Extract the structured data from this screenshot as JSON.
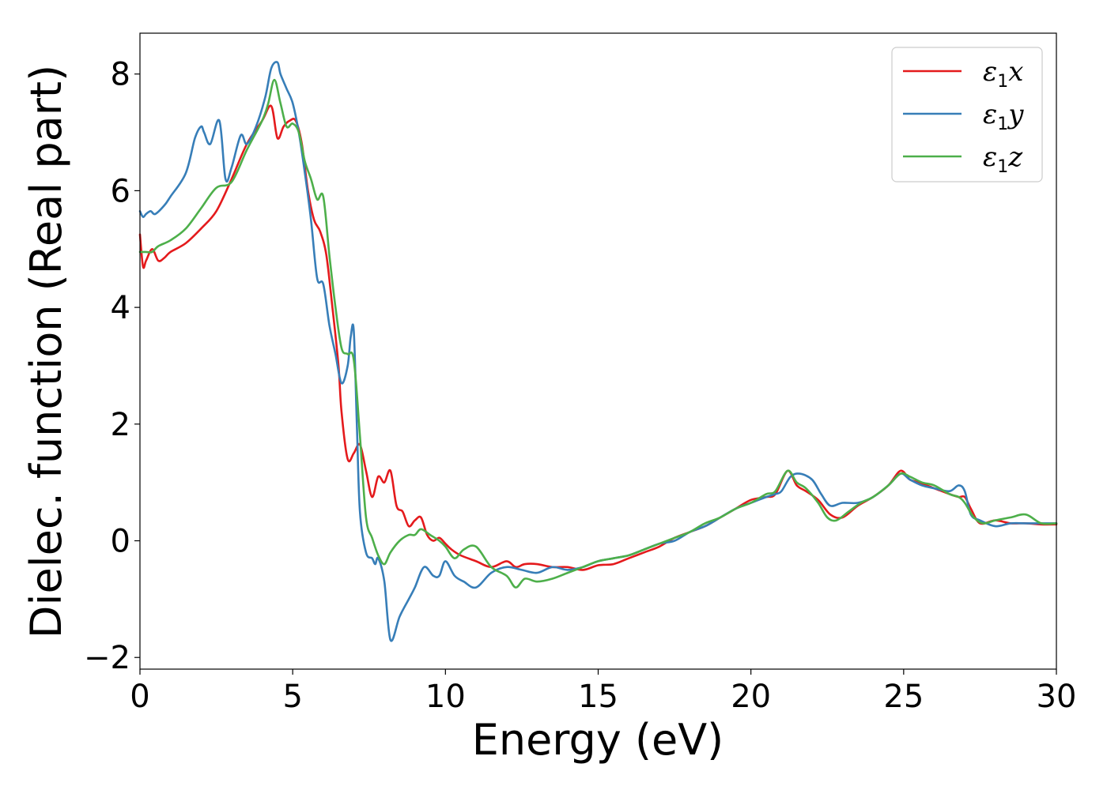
{
  "chart_data": {
    "type": "line",
    "title": "",
    "xlabel": "Energy (eV)",
    "ylabel": "Dielec. function (Real part)",
    "xlim": [
      0,
      30
    ],
    "ylim": [
      -2.2,
      8.7
    ],
    "xticks": [
      0,
      5,
      10,
      15,
      20,
      25,
      30
    ],
    "yticks": [
      -2,
      0,
      2,
      4,
      6,
      8
    ],
    "xtick_labels": [
      "0",
      "5",
      "10",
      "15",
      "20",
      "25",
      "30"
    ],
    "ytick_labels": [
      "−2",
      "0",
      "2",
      "4",
      "6",
      "8"
    ],
    "grid": false,
    "legend_position": "top-right",
    "series": [
      {
        "name": "ε1x",
        "legend_base": "ε",
        "legend_sub": "1",
        "legend_tail": "x",
        "color": "#e41a1c",
        "x": [
          0,
          0.1,
          0.2,
          0.4,
          0.6,
          0.8,
          1.0,
          1.5,
          2.0,
          2.5,
          3.0,
          3.5,
          4.0,
          4.3,
          4.5,
          4.7,
          4.9,
          5.1,
          5.3,
          5.5,
          5.7,
          5.9,
          6.1,
          6.3,
          6.5,
          6.6,
          6.8,
          7.0,
          7.2,
          7.4,
          7.6,
          7.8,
          8.0,
          8.2,
          8.4,
          8.6,
          8.8,
          9.0,
          9.2,
          9.4,
          9.6,
          9.8,
          10.0,
          10.2,
          10.5,
          11.0,
          11.5,
          12.0,
          12.3,
          12.6,
          13.0,
          13.5,
          14.0,
          14.5,
          15.0,
          15.5,
          16.0,
          16.5,
          17.0,
          17.5,
          18.0,
          18.5,
          19.0,
          19.5,
          20.0,
          20.5,
          20.8,
          21.2,
          21.5,
          21.8,
          22.2,
          22.6,
          23.0,
          23.5,
          24.0,
          24.5,
          24.9,
          25.2,
          25.5,
          26.0,
          26.5,
          26.8,
          27.0,
          27.2,
          27.5,
          28.0,
          28.5,
          29.0,
          29.5,
          30.0
        ],
        "values": [
          5.25,
          4.7,
          4.8,
          5.0,
          4.8,
          4.85,
          4.95,
          5.1,
          5.35,
          5.65,
          6.2,
          6.8,
          7.2,
          7.45,
          6.9,
          7.1,
          7.2,
          7.2,
          6.8,
          6.0,
          5.5,
          5.3,
          4.9,
          4.0,
          3.0,
          2.2,
          1.4,
          1.5,
          1.65,
          1.2,
          0.75,
          1.1,
          1.0,
          1.2,
          0.6,
          0.5,
          0.25,
          0.35,
          0.4,
          0.1,
          0.0,
          0.05,
          -0.05,
          -0.15,
          -0.25,
          -0.35,
          -0.45,
          -0.35,
          -0.45,
          -0.4,
          -0.4,
          -0.45,
          -0.45,
          -0.5,
          -0.42,
          -0.4,
          -0.3,
          -0.2,
          -0.1,
          0.05,
          0.15,
          0.25,
          0.4,
          0.55,
          0.7,
          0.75,
          0.8,
          1.2,
          0.95,
          0.85,
          0.7,
          0.45,
          0.4,
          0.6,
          0.75,
          0.95,
          1.2,
          1.05,
          1.0,
          0.9,
          0.8,
          0.75,
          0.75,
          0.55,
          0.3,
          0.35,
          0.3,
          0.3,
          0.28,
          0.28
        ]
      },
      {
        "name": "ε1y",
        "legend_base": "ε",
        "legend_sub": "1",
        "legend_tail": "y",
        "color": "#377eb8",
        "x": [
          0,
          0.1,
          0.2,
          0.35,
          0.5,
          0.8,
          1.0,
          1.5,
          1.8,
          2.0,
          2.1,
          2.3,
          2.6,
          2.8,
          3.0,
          3.3,
          3.5,
          3.8,
          4.1,
          4.3,
          4.5,
          4.6,
          4.8,
          5.0,
          5.2,
          5.4,
          5.6,
          5.8,
          6.0,
          6.2,
          6.4,
          6.6,
          6.8,
          6.9,
          7.0,
          7.1,
          7.2,
          7.4,
          7.6,
          7.7,
          7.8,
          8.0,
          8.2,
          8.5,
          8.8,
          9.0,
          9.3,
          9.6,
          9.8,
          10.0,
          10.3,
          10.6,
          11.0,
          11.5,
          12.0,
          12.5,
          13.0,
          13.5,
          14.0,
          14.5,
          15.0,
          15.5,
          16.0,
          16.5,
          17.0,
          17.5,
          18.0,
          18.5,
          19.0,
          19.5,
          20.0,
          20.5,
          20.8,
          21.0,
          21.3,
          21.6,
          22.0,
          22.3,
          22.6,
          23.0,
          23.5,
          24.0,
          24.5,
          24.9,
          25.2,
          25.6,
          26.0,
          26.5,
          26.8,
          27.0,
          27.2,
          27.5,
          28.0,
          28.5,
          29.0,
          29.5,
          30.0
        ],
        "values": [
          5.65,
          5.55,
          5.6,
          5.65,
          5.6,
          5.75,
          5.9,
          6.3,
          6.9,
          7.1,
          7.0,
          6.8,
          7.2,
          6.2,
          6.4,
          6.95,
          6.8,
          7.1,
          7.6,
          8.1,
          8.2,
          8.0,
          7.75,
          7.5,
          7.0,
          6.3,
          5.5,
          4.5,
          4.4,
          3.7,
          3.2,
          2.7,
          3.0,
          3.5,
          3.6,
          2.0,
          0.5,
          -0.2,
          -0.3,
          -0.4,
          -0.3,
          -0.7,
          -1.7,
          -1.3,
          -1.0,
          -0.8,
          -0.45,
          -0.6,
          -0.6,
          -0.35,
          -0.6,
          -0.7,
          -0.8,
          -0.55,
          -0.45,
          -0.5,
          -0.55,
          -0.45,
          -0.5,
          -0.45,
          -0.35,
          -0.3,
          -0.25,
          -0.15,
          -0.05,
          0.0,
          0.15,
          0.25,
          0.4,
          0.55,
          0.65,
          0.75,
          0.8,
          0.85,
          1.1,
          1.15,
          1.05,
          0.8,
          0.6,
          0.65,
          0.65,
          0.75,
          0.95,
          1.15,
          1.05,
          0.95,
          0.9,
          0.85,
          0.95,
          0.85,
          0.45,
          0.35,
          0.25,
          0.3,
          0.3,
          0.3,
          0.3
        ]
      },
      {
        "name": "ε1z",
        "legend_base": "ε",
        "legend_sub": "1",
        "legend_tail": "z",
        "color": "#4daf4a",
        "x": [
          0,
          0.2,
          0.4,
          0.6,
          1.0,
          1.5,
          2.0,
          2.5,
          3.0,
          3.5,
          4.0,
          4.2,
          4.4,
          4.6,
          4.8,
          5.0,
          5.2,
          5.4,
          5.6,
          5.8,
          6.0,
          6.2,
          6.4,
          6.6,
          6.8,
          7.0,
          7.2,
          7.4,
          7.6,
          7.8,
          8.0,
          8.2,
          8.5,
          8.8,
          9.0,
          9.2,
          9.5,
          9.8,
          10.0,
          10.3,
          10.6,
          11.0,
          11.5,
          12.0,
          12.3,
          12.6,
          13.0,
          13.5,
          14.0,
          14.5,
          15.0,
          15.5,
          16.0,
          16.5,
          17.0,
          17.5,
          18.0,
          18.5,
          19.0,
          19.5,
          20.0,
          20.5,
          20.8,
          21.2,
          21.5,
          21.8,
          22.2,
          22.5,
          22.8,
          23.2,
          23.6,
          24.0,
          24.5,
          24.9,
          25.2,
          25.6,
          26.0,
          26.5,
          26.8,
          27.0,
          27.3,
          27.6,
          28.0,
          28.5,
          29.0,
          29.5,
          30.0
        ],
        "values": [
          4.95,
          4.95,
          4.95,
          5.05,
          5.15,
          5.35,
          5.7,
          6.05,
          6.15,
          6.7,
          7.2,
          7.5,
          7.9,
          7.5,
          7.1,
          7.15,
          7.0,
          6.5,
          6.2,
          5.85,
          5.9,
          4.9,
          4.0,
          3.3,
          3.2,
          3.1,
          1.8,
          0.4,
          0.05,
          -0.25,
          -0.4,
          -0.2,
          0.0,
          0.1,
          0.1,
          0.2,
          0.1,
          0.0,
          -0.1,
          -0.3,
          -0.15,
          -0.1,
          -0.45,
          -0.6,
          -0.8,
          -0.65,
          -0.7,
          -0.65,
          -0.55,
          -0.45,
          -0.35,
          -0.3,
          -0.25,
          -0.15,
          -0.05,
          0.05,
          0.15,
          0.3,
          0.4,
          0.55,
          0.65,
          0.8,
          0.85,
          1.2,
          1.0,
          0.9,
          0.65,
          0.4,
          0.35,
          0.5,
          0.65,
          0.75,
          0.95,
          1.15,
          1.1,
          1.0,
          0.95,
          0.8,
          0.75,
          0.65,
          0.4,
          0.3,
          0.35,
          0.4,
          0.45,
          0.3,
          0.3
        ]
      }
    ]
  }
}
